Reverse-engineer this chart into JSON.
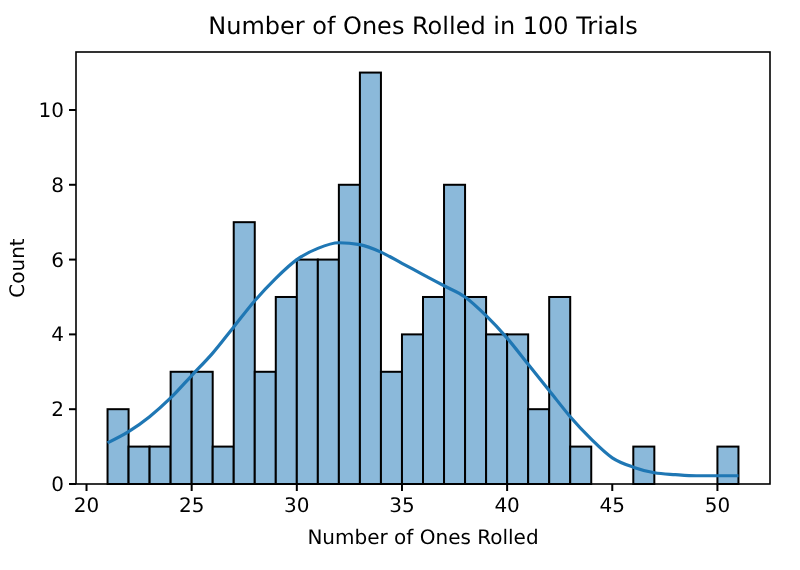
{
  "chart_data": {
    "type": "histogram",
    "title": "Number of Ones Rolled in 100 Trials",
    "xlabel": "Number of Ones Rolled",
    "ylabel": "Count",
    "xlim": [
      19.5,
      52.5
    ],
    "xticks": [
      20,
      25,
      30,
      35,
      40,
      45,
      50
    ],
    "ylim": [
      0,
      11.55
    ],
    "yticks": [
      0,
      2,
      4,
      6,
      8,
      10
    ],
    "grid": false,
    "series": [
      {
        "color": "#8bb9da",
        "bins": [
          21,
          22,
          23,
          24,
          25,
          26,
          27,
          28,
          29,
          30,
          31,
          32,
          33,
          34,
          35,
          36,
          37,
          38,
          39,
          40,
          41,
          42,
          43,
          44,
          45,
          46,
          47,
          48,
          49,
          50,
          51
        ],
        "values": [
          2,
          1,
          1,
          3,
          3,
          1,
          7,
          3,
          5,
          6,
          6,
          8,
          11,
          3,
          4,
          5,
          8,
          5,
          4,
          4,
          2,
          5,
          1,
          0,
          0,
          1,
          0,
          0,
          0,
          1
        ]
      },
      {
        "type": "line",
        "color": "#1f77b4",
        "x": [
          21,
          22,
          23,
          24,
          25,
          26,
          27,
          28,
          29,
          30,
          31,
          32,
          33,
          34,
          35,
          36,
          37,
          38,
          39,
          40,
          41,
          42,
          43,
          44,
          45,
          46,
          47,
          48,
          49,
          50,
          51
        ],
        "values": [
          1.1,
          1.4,
          1.8,
          2.3,
          2.9,
          3.5,
          4.2,
          4.9,
          5.5,
          6.0,
          6.3,
          6.45,
          6.4,
          6.2,
          5.9,
          5.6,
          5.3,
          5.0,
          4.5,
          3.9,
          3.2,
          2.5,
          1.8,
          1.2,
          0.7,
          0.45,
          0.3,
          0.25,
          0.22,
          0.22,
          0.22
        ]
      }
    ]
  }
}
